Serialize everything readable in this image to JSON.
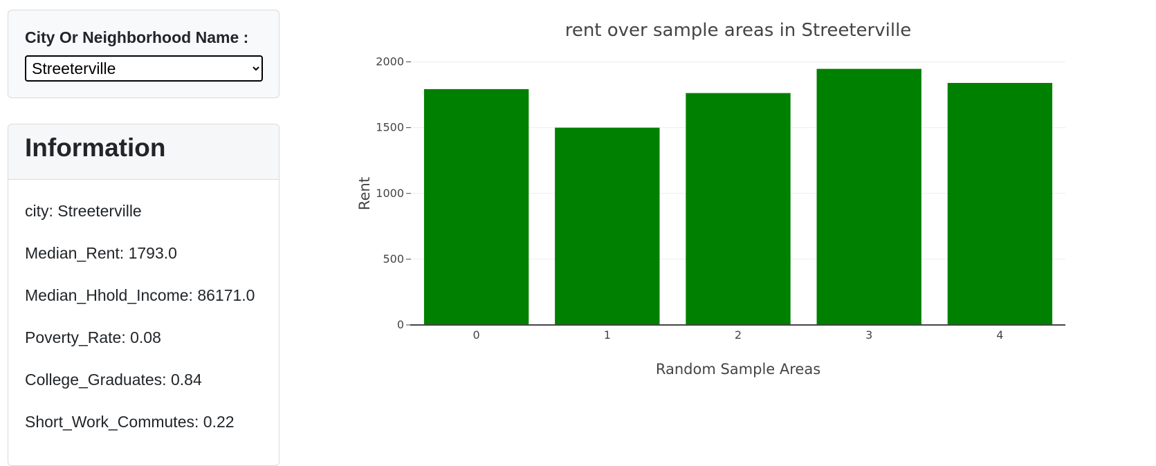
{
  "selector": {
    "label": "City Or Neighborhood Name :",
    "selected": "Streeterville"
  },
  "info": {
    "title": "Information",
    "rows": [
      "city: Streeterville",
      "Median_Rent: 1793.0",
      "Median_Hhold_Income: 86171.0",
      "Poverty_Rate: 0.08",
      "College_Graduates: 0.84",
      "Short_Work_Commutes: 0.22"
    ]
  },
  "colors": {
    "bar": "#008000",
    "grid": "#eeeeee",
    "axis_line": "#444444"
  },
  "chart_data": {
    "type": "bar",
    "title": "rent over sample areas in Streeterville",
    "xlabel": "Random Sample Areas",
    "ylabel": "Rent",
    "categories": [
      "0",
      "1",
      "2",
      "3",
      "4"
    ],
    "values": [
      1793,
      1500,
      1763,
      1947,
      1840
    ],
    "ylim": [
      0,
      2050
    ],
    "yticks": [
      0,
      500,
      1000,
      1500,
      2000
    ],
    "grid": true,
    "legend": "none"
  }
}
